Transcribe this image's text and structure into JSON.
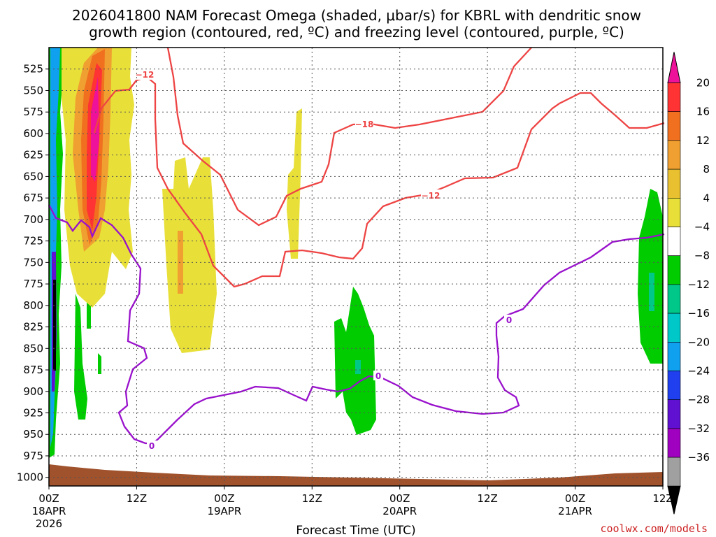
{
  "chart_data": {
    "type": "contour",
    "title_line1": "2026041800 NAM Forecast Omega (shaded, μbar/s) for KBRL with dendritic snow",
    "title_line2": "growth region (contoured, red, ºC) and freezing level (contoured, purple, ºC)",
    "xlabel": "Forecast Time (UTC)",
    "credit": "coolwx.com/models",
    "x_hours_range": [
      0,
      84
    ],
    "y_range_mb": [
      500,
      1010
    ],
    "x_ticks": [
      {
        "h": 0,
        "label": "00Z",
        "sub1": "18APR",
        "sub2": "2026"
      },
      {
        "h": 12,
        "label": "12Z",
        "sub1": "",
        "sub2": ""
      },
      {
        "h": 24,
        "label": "00Z",
        "sub1": "19APR",
        "sub2": ""
      },
      {
        "h": 36,
        "label": "12Z",
        "sub1": "",
        "sub2": ""
      },
      {
        "h": 48,
        "label": "00Z",
        "sub1": "20APR",
        "sub2": ""
      },
      {
        "h": 60,
        "label": "12Z",
        "sub1": "",
        "sub2": ""
      },
      {
        "h": 72,
        "label": "00Z",
        "sub1": "21APR",
        "sub2": ""
      },
      {
        "h": 84,
        "label": "12Z",
        "sub1": "",
        "sub2": ""
      }
    ],
    "y_ticks": [
      525,
      550,
      575,
      600,
      625,
      650,
      675,
      700,
      725,
      750,
      775,
      800,
      825,
      850,
      875,
      900,
      925,
      950,
      975,
      1000
    ],
    "colorbar": {
      "labels": [
        "20",
        "16",
        "12",
        "8",
        "4",
        "−4",
        "−8",
        "−12",
        "−16",
        "−20",
        "−24",
        "−28",
        "−32",
        "−36"
      ],
      "top_cap": "#ee1199",
      "bottom_cap": "#000000",
      "colors": [
        "#ff3333",
        "#f07020",
        "#f0a030",
        "#e8c030",
        "#e8e038",
        "#ffffff",
        "#00cc00",
        "#00c888",
        "#00c8c8",
        "#10a0f0",
        "#2040f0",
        "#6010d0",
        "#a000c0",
        "#a0a0a0"
      ]
    },
    "dgz_contour_labels": [
      "−12",
      "−18",
      "−12"
    ],
    "freezing_contour_labels": [
      "0",
      "0",
      "0"
    ],
    "terrain_color": "#a0522d",
    "dgz_color": "#ee4444",
    "freezing_color": "#9911cc"
  }
}
